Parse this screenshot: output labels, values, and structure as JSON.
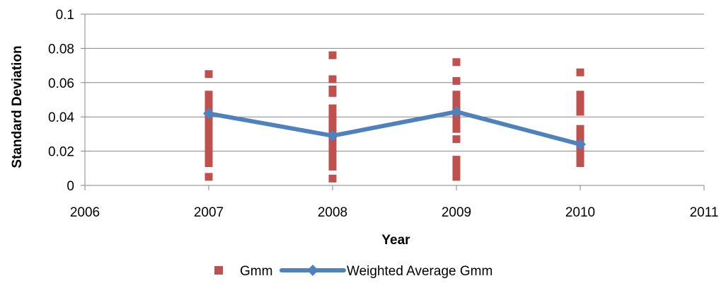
{
  "chart_data": {
    "type": "scatter",
    "title": "",
    "xlabel": "Year",
    "ylabel": "Standard Deviation",
    "xlim": [
      2006,
      2011
    ],
    "ylim": [
      0,
      0.1
    ],
    "x_ticks": [
      "2006",
      "2007",
      "2008",
      "2009",
      "2010",
      "2011"
    ],
    "y_ticks": [
      "0",
      "0.02",
      "0.04",
      "0.06",
      "0.08",
      "0.1"
    ],
    "grid": "horizontal",
    "legend_position": "bottom",
    "series": [
      {
        "name": "Gmm",
        "type": "scatter",
        "color": "#C0504D",
        "marker": "square",
        "points": [
          [
            2007,
            0.065
          ],
          [
            2007,
            0.053
          ],
          [
            2007,
            0.051
          ],
          [
            2007,
            0.049
          ],
          [
            2007,
            0.047
          ],
          [
            2007,
            0.045
          ],
          [
            2007,
            0.043
          ],
          [
            2007,
            0.041
          ],
          [
            2007,
            0.039
          ],
          [
            2007,
            0.037
          ],
          [
            2007,
            0.035
          ],
          [
            2007,
            0.033
          ],
          [
            2007,
            0.031
          ],
          [
            2007,
            0.029
          ],
          [
            2007,
            0.027
          ],
          [
            2007,
            0.025
          ],
          [
            2007,
            0.023
          ],
          [
            2007,
            0.021
          ],
          [
            2007,
            0.019
          ],
          [
            2007,
            0.017
          ],
          [
            2007,
            0.015
          ],
          [
            2007,
            0.013
          ],
          [
            2007,
            0.005
          ],
          [
            2008,
            0.076
          ],
          [
            2008,
            0.062
          ],
          [
            2008,
            0.056
          ],
          [
            2008,
            0.054
          ],
          [
            2008,
            0.045
          ],
          [
            2008,
            0.043
          ],
          [
            2008,
            0.041
          ],
          [
            2008,
            0.039
          ],
          [
            2008,
            0.037
          ],
          [
            2008,
            0.035
          ],
          [
            2008,
            0.033
          ],
          [
            2008,
            0.031
          ],
          [
            2008,
            0.029
          ],
          [
            2008,
            0.027
          ],
          [
            2008,
            0.025
          ],
          [
            2008,
            0.023
          ],
          [
            2008,
            0.021
          ],
          [
            2008,
            0.019
          ],
          [
            2008,
            0.017
          ],
          [
            2008,
            0.015
          ],
          [
            2008,
            0.013
          ],
          [
            2008,
            0.011
          ],
          [
            2008,
            0.004
          ],
          [
            2009,
            0.072
          ],
          [
            2009,
            0.061
          ],
          [
            2009,
            0.053
          ],
          [
            2009,
            0.051
          ],
          [
            2009,
            0.049
          ],
          [
            2009,
            0.047
          ],
          [
            2009,
            0.045
          ],
          [
            2009,
            0.043
          ],
          [
            2009,
            0.041
          ],
          [
            2009,
            0.039
          ],
          [
            2009,
            0.037
          ],
          [
            2009,
            0.035
          ],
          [
            2009,
            0.033
          ],
          [
            2009,
            0.027
          ],
          [
            2009,
            0.015
          ],
          [
            2009,
            0.013
          ],
          [
            2009,
            0.011
          ],
          [
            2009,
            0.009
          ],
          [
            2009,
            0.007
          ],
          [
            2009,
            0.005
          ],
          [
            2010,
            0.066
          ],
          [
            2010,
            0.053
          ],
          [
            2010,
            0.051
          ],
          [
            2010,
            0.049
          ],
          [
            2010,
            0.047
          ],
          [
            2010,
            0.045
          ],
          [
            2010,
            0.043
          ],
          [
            2010,
            0.033
          ],
          [
            2010,
            0.031
          ],
          [
            2010,
            0.029
          ],
          [
            2010,
            0.027
          ],
          [
            2010,
            0.025
          ],
          [
            2010,
            0.023
          ],
          [
            2010,
            0.021
          ],
          [
            2010,
            0.019
          ],
          [
            2010,
            0.017
          ],
          [
            2010,
            0.015
          ],
          [
            2010,
            0.013
          ]
        ]
      },
      {
        "name": "Weighted Average Gmm",
        "type": "line",
        "color": "#4F81BD",
        "marker": "diamond",
        "points": [
          [
            2007,
            0.042
          ],
          [
            2008,
            0.029
          ],
          [
            2009,
            0.043
          ],
          [
            2010,
            0.024
          ]
        ]
      }
    ]
  }
}
